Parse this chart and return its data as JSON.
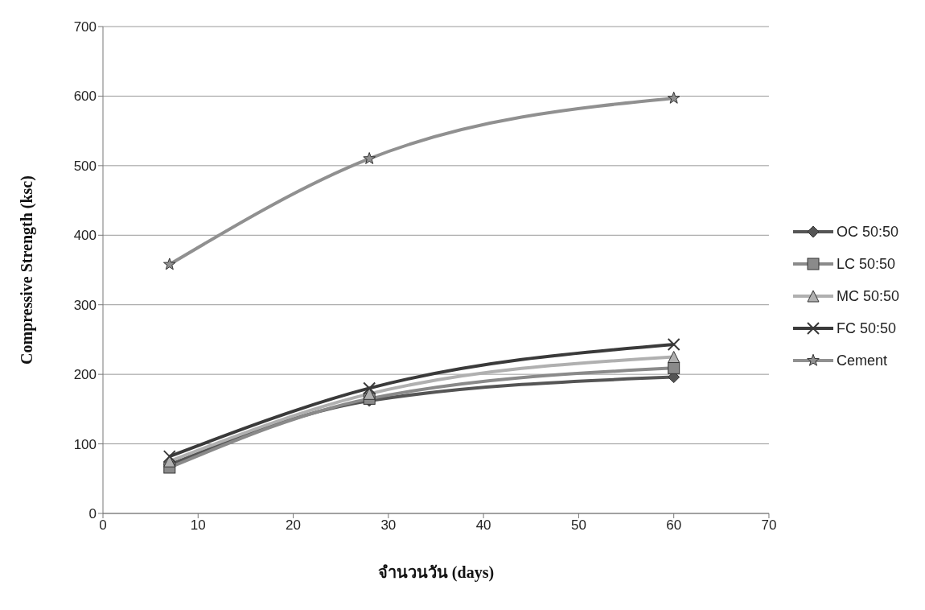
{
  "chart_data": {
    "type": "line",
    "xlabel": "จำนวนวัน (days)",
    "ylabel": "Compressive Strength (ksc)",
    "x": [
      7,
      28,
      60
    ],
    "series": [
      {
        "name": "OC 50:50",
        "color": "#555555",
        "marker": "diamond",
        "values": [
          70,
          162,
          196
        ]
      },
      {
        "name": "LC 50:50",
        "color": "#8a8a8a",
        "marker": "square",
        "values": [
          66,
          165,
          209
        ]
      },
      {
        "name": "MC 50:50",
        "color": "#b0b0b0",
        "marker": "triangle",
        "values": [
          75,
          172,
          225
        ]
      },
      {
        "name": "FC 50:50",
        "color": "#3a3a3a",
        "marker": "cross",
        "values": [
          82,
          180,
          243
        ]
      },
      {
        "name": "Cement",
        "color": "#909090",
        "marker": "star",
        "values": [
          358,
          510,
          597
        ]
      }
    ],
    "xlim": [
      0,
      70
    ],
    "xticks": [
      0,
      10,
      20,
      30,
      40,
      50,
      60,
      70
    ],
    "ylim": [
      0,
      700
    ],
    "yticks": [
      0,
      100,
      200,
      300,
      400,
      500,
      600,
      700
    ],
    "grid": "y",
    "legend": "right",
    "line_style": "solid"
  }
}
